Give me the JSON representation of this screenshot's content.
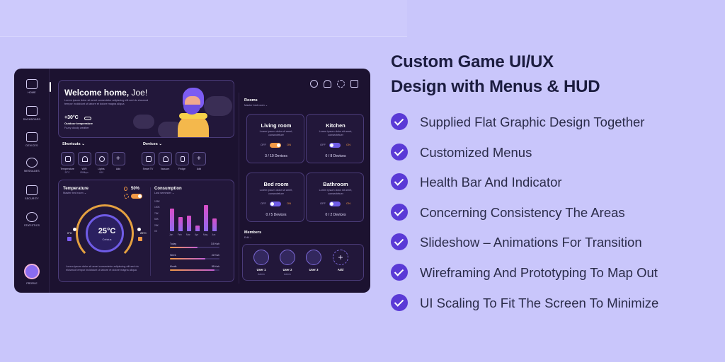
{
  "headline": {
    "line1": "Custom Game UI/UX",
    "line2": "Design with Menus & HUD"
  },
  "features": [
    "Supplied Flat Graphic Design Together",
    "Customized Menus",
    "Health Bar And Indicator",
    "Concerning Consistency The Areas",
    "Slideshow – Animations For Transition",
    "Wireframing And Prototyping To Map Out",
    "UI Scaling To Fit The Screen To Minimize"
  ],
  "colors": {
    "background": "#c9c6fb",
    "dashboard": "#1c1230",
    "accent": "#5a3ad6",
    "orange": "#f39a45"
  },
  "sidebar": {
    "items": [
      {
        "label": "HOME",
        "icon": "home-icon"
      },
      {
        "label": "DASHBOARD",
        "icon": "dashboard-icon"
      },
      {
        "label": "DEVICES",
        "icon": "devices-icon"
      },
      {
        "label": "MESSAGES",
        "icon": "messages-icon"
      },
      {
        "label": "SECURITY",
        "icon": "lock-icon"
      },
      {
        "label": "STATISTICS",
        "icon": "statistics-icon"
      }
    ],
    "profile": "PROFILE"
  },
  "welcome": {
    "title_bold": "Welcome home,",
    "title_name": " Joe!",
    "lorem": "Lorem ipsum dolor sit amet consectetur adipiscing elit sed do eiusmod tempor incididunt ut labore et dolore magna aliqua",
    "temp": "+30°C",
    "outdoor_label": "Outdoor temperature",
    "outdoor_sub": "Fuzzy cloudy weather"
  },
  "shortcuts": {
    "title": "Shortcuts",
    "items": [
      {
        "label": "Temperature",
        "sub": "25°C"
      },
      {
        "label": "WiFi",
        "sub": "85Mbps"
      },
      {
        "label": "Lights",
        "sub": "4/10"
      },
      {
        "label": "Add",
        "sub": ""
      }
    ]
  },
  "devices": {
    "title": "Devices",
    "items": [
      {
        "label": "Smart TV"
      },
      {
        "label": "Vacuum"
      },
      {
        "label": "Fridge"
      },
      {
        "label": "Add"
      }
    ]
  },
  "temperature": {
    "title": "Temperature",
    "room": "Master bed room",
    "humidity": "50%",
    "value": "25°C",
    "unit_label": "Celsius",
    "min": "0°C",
    "max": "25°C"
  },
  "consumption": {
    "title": "Consumption",
    "period": "Last semester",
    "rows": [
      {
        "label": "Today",
        "value": "3.5 Kwh",
        "fill": 0.55
      },
      {
        "label": "Week",
        "value": "22 Kwh",
        "fill": 0.72
      },
      {
        "label": "Month",
        "value": "95 Kwh",
        "fill": 0.9
      }
    ]
  },
  "chart_data": {
    "type": "bar",
    "categories": [
      "Jan",
      "Feb",
      "Mar",
      "Apr",
      "May",
      "Jun"
    ],
    "values": [
      95,
      60,
      65,
      25,
      110,
      55
    ],
    "ylim": [
      0,
      125
    ],
    "ytick_labels": [
      "125K",
      "100K",
      "75K",
      "50K",
      "25K",
      "0K"
    ]
  },
  "rooms": {
    "title": "Rooms",
    "sub": "Master bed room",
    "items": [
      {
        "name": "Living room",
        "desc": "Lorem ipsum dolor sit amet, consectetuer",
        "off": "OFF",
        "on": "ON",
        "count": "3 / 10 Devices",
        "active": true
      },
      {
        "name": "Kitchen",
        "desc": "Lorem ipsum dolor sit amet, consectetuer",
        "off": "OFF",
        "on": "ON",
        "count": "0 / 8 Devices",
        "active": false
      },
      {
        "name": "Bed room",
        "desc": "Lorem ipsum dolor sit amet, consectetuer",
        "off": "OFF",
        "on": "ON",
        "count": "0 / 5 Devices",
        "active": false
      },
      {
        "name": "Bathroom",
        "desc": "Lorem ipsum dolor sit amet, consectetuer",
        "off": "OFF",
        "on": "ON",
        "count": "0 / 2 Devices",
        "active": false
      }
    ]
  },
  "members": {
    "title": "Members",
    "edit": "Edit",
    "items": [
      {
        "name": "User 1",
        "role": "Admin"
      },
      {
        "name": "User 2",
        "role": "Admin"
      },
      {
        "name": "User 3",
        "role": ""
      },
      {
        "name": "Add",
        "role": ""
      }
    ]
  }
}
